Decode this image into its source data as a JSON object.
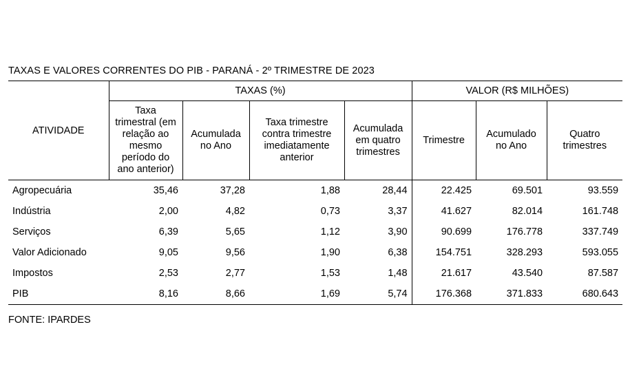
{
  "title": "TAXAS E VALORES CORRENTES DO PIB - PARANÁ - 2º TRIMESTRE DE 2023",
  "headers": {
    "atividade": "ATIVIDADE",
    "taxas_group": "TAXAS (%)",
    "valor_group": "VALOR (R$ MILHÕES)",
    "taxas": [
      "Taxa trimestral (em relação ao mesmo período do ano anterior)",
      "Acumulada no Ano",
      "Taxa trimestre contra trimestre imediatamente anterior",
      "Acumulada em quatro trimestres"
    ],
    "valor": [
      "Trimestre",
      "Acumulado no Ano",
      "Quatro trimestres"
    ]
  },
  "rows": [
    {
      "label": "Agropecuária",
      "values": [
        "35,46",
        "37,28",
        "1,88",
        "28,44",
        "22.425",
        "69.501",
        "93.559"
      ]
    },
    {
      "label": "Indústria",
      "values": [
        "2,00",
        "4,82",
        "0,73",
        "3,37",
        "41.627",
        "82.014",
        "161.748"
      ]
    },
    {
      "label": "Serviços",
      "values": [
        "6,39",
        "5,65",
        "1,12",
        "3,90",
        "90.699",
        "176.778",
        "337.749"
      ]
    },
    {
      "label": "Valor Adicionado",
      "values": [
        "9,05",
        "9,56",
        "1,90",
        "6,38",
        "154.751",
        "328.293",
        "593.055"
      ]
    },
    {
      "label": "Impostos",
      "values": [
        "2,53",
        "2,77",
        "1,53",
        "1,48",
        "21.617",
        "43.540",
        "87.587"
      ]
    },
    {
      "label": "PIB",
      "values": [
        "8,16",
        "8,66",
        "1,69",
        "5,74",
        "176.368",
        "371.833",
        "680.643"
      ]
    }
  ],
  "source": "FONTE: IPARDES"
}
